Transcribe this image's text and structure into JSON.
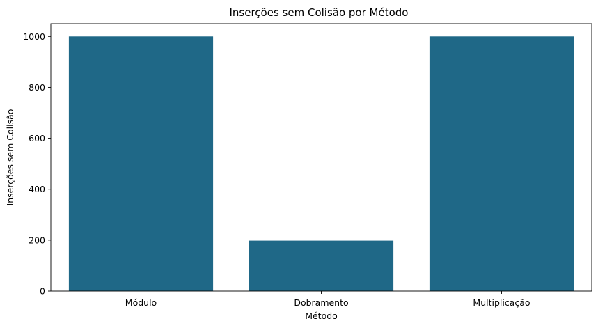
{
  "chart_data": {
    "type": "bar",
    "title": "Inserções sem Colisão por Método",
    "xlabel": "Método",
    "ylabel": "Inserções sem Colisão",
    "categories": [
      "Módulo",
      "Dobramento",
      "Multiplicação"
    ],
    "values": [
      1000,
      198,
      1000
    ],
    "ylim": [
      0,
      1050
    ],
    "yticks": [
      0,
      200,
      400,
      600,
      800,
      1000
    ],
    "grid": false,
    "legend": "none",
    "bar_color": "#1f6887"
  }
}
